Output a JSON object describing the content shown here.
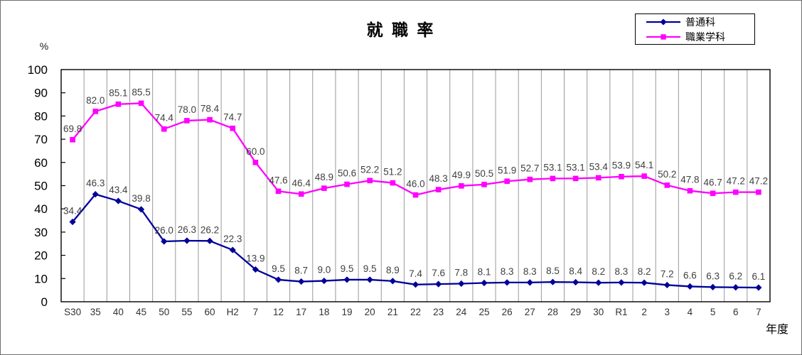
{
  "header": {
    "title": "就 職 率"
  },
  "chart_data": {
    "type": "line",
    "title": "就職率",
    "xlabel": "年度",
    "ylabel": "%",
    "ylim": [
      0,
      100
    ],
    "ytick_step": 10,
    "grid": "vertical-only",
    "legend_position": "top-right",
    "data_label_format": "one-decimal",
    "categories": [
      "S30",
      "35",
      "40",
      "45",
      "50",
      "55",
      "60",
      "H2",
      "7",
      "12",
      "17",
      "18",
      "19",
      "20",
      "21",
      "22",
      "23",
      "24",
      "25",
      "26",
      "27",
      "28",
      "29",
      "30",
      "R1",
      "2",
      "3",
      "4",
      "5",
      "6",
      "7"
    ],
    "series": [
      {
        "name": "普通科",
        "color": "#000099",
        "marker": "diamond",
        "values": [
          34.4,
          46.3,
          43.4,
          39.8,
          26.0,
          26.3,
          26.2,
          22.3,
          13.9,
          9.5,
          8.7,
          9.0,
          9.5,
          9.5,
          8.9,
          7.4,
          7.6,
          7.8,
          8.1,
          8.3,
          8.3,
          8.5,
          8.4,
          8.2,
          8.3,
          8.2,
          7.2,
          6.6,
          6.3,
          6.2,
          6.1
        ]
      },
      {
        "name": "職業学科",
        "color": "#FF00FF",
        "marker": "square",
        "values": [
          69.8,
          82.0,
          85.1,
          85.5,
          74.4,
          78.0,
          78.4,
          74.7,
          60.0,
          47.6,
          46.4,
          48.9,
          50.6,
          52.2,
          51.2,
          46.0,
          48.3,
          49.9,
          50.5,
          51.9,
          52.7,
          53.1,
          53.1,
          53.4,
          53.9,
          54.1,
          50.2,
          47.8,
          46.7,
          47.2,
          47.2
        ]
      }
    ],
    "colors": {
      "grid_line": "#999999",
      "plot_frame": "#000000",
      "data_label": "#404040",
      "axis_label": "#333333"
    }
  }
}
